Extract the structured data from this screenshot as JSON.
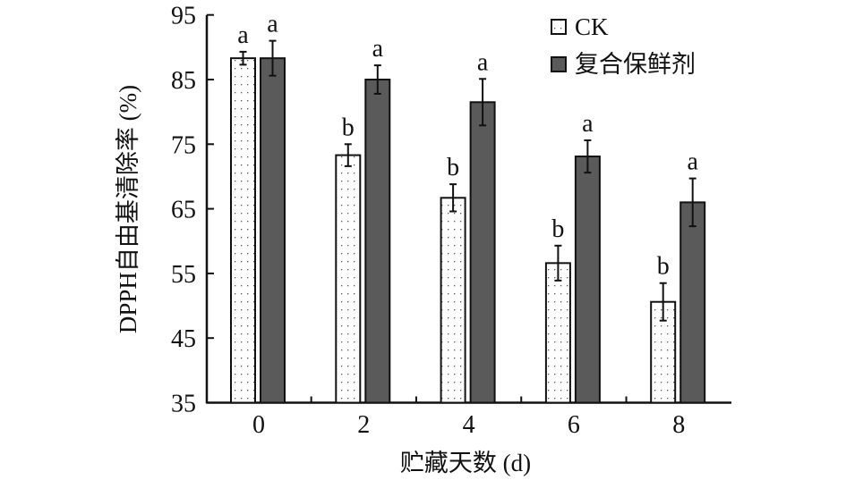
{
  "chart_data": {
    "type": "bar",
    "title": "",
    "xlabel": "贮藏天数 (d)",
    "ylabel": "DPPH自由基清除率 (%)",
    "ylim": [
      35,
      95
    ],
    "yticks": [
      "35",
      "45",
      "55",
      "65",
      "75",
      "85",
      "95"
    ],
    "categories": [
      "0",
      "2",
      "4",
      "6",
      "8"
    ],
    "legend_position": "top-right",
    "series": [
      {
        "name": "CK",
        "pattern": "dotted-white",
        "values": [
          88.3,
          73.3,
          66.7,
          56.6,
          50.6
        ],
        "errors": [
          1.0,
          1.7,
          2.1,
          2.7,
          2.9
        ],
        "labels": [
          "a",
          "b",
          "b",
          "b",
          "b"
        ]
      },
      {
        "name": "复合保鲜剂",
        "color": "#5a5a5a",
        "values": [
          88.3,
          85.0,
          81.5,
          73.1,
          66.0
        ],
        "errors": [
          2.7,
          2.2,
          3.6,
          2.5,
          3.7
        ],
        "labels": [
          "a",
          "a",
          "a",
          "a",
          "a"
        ]
      }
    ]
  }
}
